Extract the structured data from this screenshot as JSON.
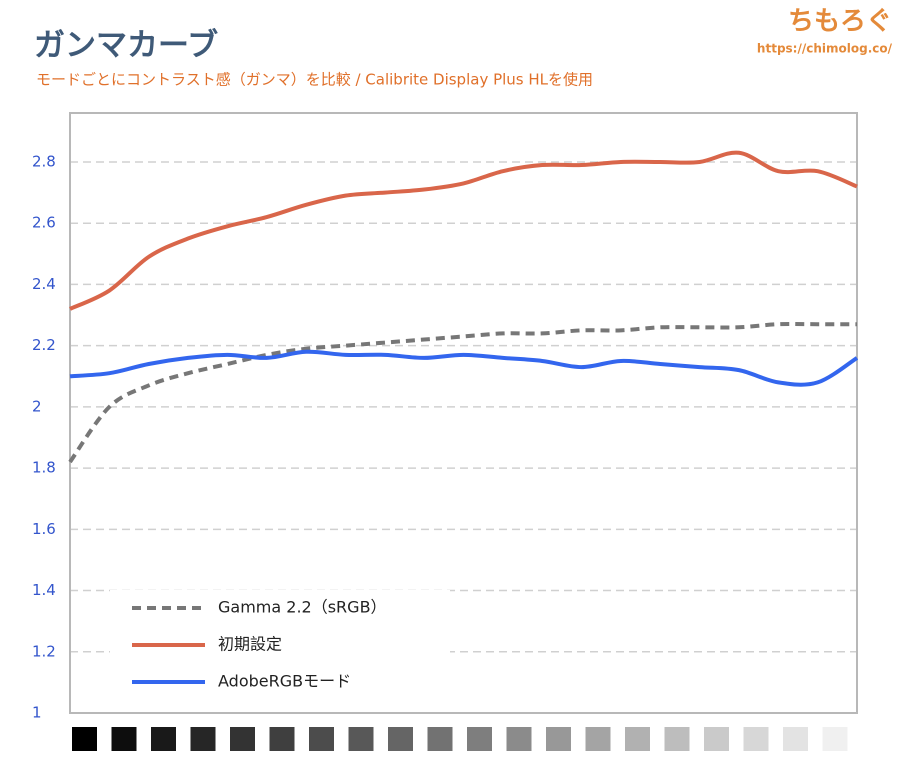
{
  "brand": {
    "name": "ちもろぐ",
    "url": "https://chimolog.co/"
  },
  "chart_data": {
    "type": "line",
    "title": "ガンマカーブ",
    "subtitle": "モードごとにコントラスト感（ガンマ）を比較 / Calibrite Display Plus HLを使用",
    "categories": [
      null,
      null,
      null,
      null,
      null,
      null,
      null,
      null,
      null,
      null,
      null,
      null,
      null,
      null,
      null,
      null,
      null,
      null,
      null,
      null,
      null
    ],
    "series": [
      {
        "name": "Gamma 2.2（sRGB）",
        "color": "#777777",
        "dashed": true,
        "values": [
          1.82,
          2.0,
          2.07,
          2.11,
          2.14,
          2.17,
          2.19,
          2.2,
          2.21,
          2.22,
          2.23,
          2.24,
          2.24,
          2.25,
          2.25,
          2.26,
          2.26,
          2.26,
          2.27,
          2.27,
          2.27
        ]
      },
      {
        "name": "初期設定",
        "color": "#d9664a",
        "dashed": false,
        "values": [
          2.32,
          2.38,
          2.49,
          2.55,
          2.59,
          2.62,
          2.66,
          2.69,
          2.7,
          2.71,
          2.73,
          2.77,
          2.79,
          2.79,
          2.8,
          2.8,
          2.8,
          2.83,
          2.77,
          2.77,
          2.72
        ]
      },
      {
        "name": "AdobeRGBモード",
        "color": "#3366ee",
        "dashed": false,
        "values": [
          2.1,
          2.11,
          2.14,
          2.16,
          2.17,
          2.16,
          2.18,
          2.17,
          2.17,
          2.16,
          2.17,
          2.16,
          2.15,
          2.13,
          2.15,
          2.14,
          2.13,
          2.12,
          2.08,
          2.08,
          2.16
        ]
      }
    ],
    "ylim": [
      1,
      2.96
    ],
    "yticks": [
      1,
      1.2,
      1.4,
      1.6,
      1.8,
      2,
      2.2,
      2.4,
      2.6,
      2.8
    ],
    "grid": true,
    "legend": "lower left"
  }
}
